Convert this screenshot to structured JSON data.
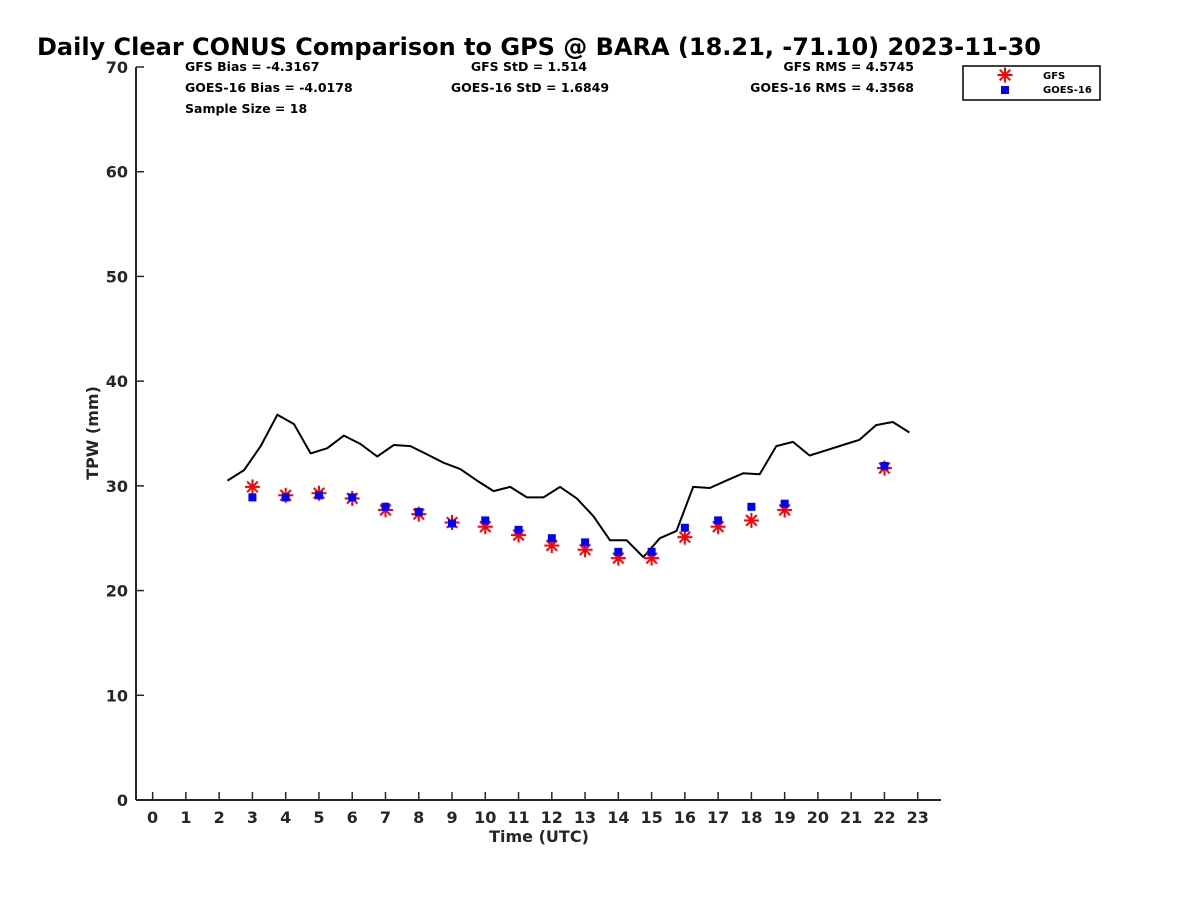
{
  "chart_data": {
    "type": "scatter",
    "title": "Daily Clear CONUS Comparison to GPS @ BARA (18.21, -71.10) 2023-11-30",
    "xlabel": "Time (UTC)",
    "ylabel": "TPW (mm)",
    "xlim": [
      -0.5,
      23.7
    ],
    "ylim": [
      0,
      70
    ],
    "x_ticks": [
      "0",
      "1",
      "2",
      "3",
      "4",
      "5",
      "6",
      "7",
      "8",
      "9",
      "10",
      "11",
      "12",
      "13",
      "14",
      "15",
      "16",
      "17",
      "18",
      "19",
      "20",
      "21",
      "22",
      "23"
    ],
    "y_ticks": [
      "0",
      "10",
      "20",
      "30",
      "40",
      "50",
      "60",
      "70"
    ],
    "grid": false,
    "legend_position": "top-right",
    "stats": {
      "gfs_bias": "GFS Bias = -4.3167",
      "goes_bias": "GOES-16 Bias = -4.0178",
      "sample_size": "Sample Size = 18",
      "gfs_std": "GFS StD = 1.514",
      "goes_std": "GOES-16 StD = 1.6849",
      "gfs_rms": "GFS RMS = 4.5745",
      "goes_rms": "GOES-16 RMS = 4.3568"
    },
    "series": [
      {
        "name": "GFS",
        "marker": "asterisk",
        "color": "#ff0000",
        "x": [
          3,
          4,
          5,
          6,
          7,
          8,
          9,
          10,
          11,
          12,
          13,
          14,
          15,
          16,
          17,
          18,
          19,
          22
        ],
        "y": [
          29.9,
          29.1,
          29.3,
          28.8,
          27.7,
          27.3,
          26.5,
          26.1,
          25.3,
          24.3,
          23.9,
          23.1,
          23.1,
          25.1,
          26.1,
          26.7,
          27.7,
          31.7
        ]
      },
      {
        "name": "GOES-16",
        "marker": "square",
        "color": "#0000ff",
        "x": [
          3,
          4,
          5,
          6,
          7,
          8,
          9,
          10,
          11,
          12,
          13,
          14,
          15,
          16,
          17,
          18,
          19,
          22
        ],
        "y": [
          28.9,
          28.9,
          29.1,
          28.9,
          28.0,
          27.5,
          26.4,
          26.7,
          25.8,
          25.0,
          24.6,
          23.7,
          23.7,
          26.0,
          26.7,
          28.0,
          28.3,
          31.9
        ]
      },
      {
        "marker": "line",
        "color": "#000000",
        "x": [
          2.25,
          2.75,
          3.25,
          3.75,
          4.25,
          4.75,
          5.25,
          5.75,
          6.25,
          6.75,
          7.25,
          7.75,
          8.25,
          8.75,
          9.25,
          9.75,
          10.25,
          10.75,
          11.25,
          11.75,
          12.25,
          12.75,
          13.25,
          13.75,
          14.25,
          14.75,
          15.25,
          15.75,
          16.25,
          16.75,
          17.25,
          17.75,
          18.25,
          18.75,
          19.25,
          19.75,
          20.25,
          20.75,
          21.25,
          21.75,
          22.25,
          22.75
        ],
        "y": [
          30.5,
          31.5,
          33.8,
          36.8,
          35.9,
          33.1,
          33.6,
          34.8,
          34.0,
          32.8,
          33.9,
          33.8,
          33.0,
          32.2,
          31.6,
          30.5,
          29.5,
          29.9,
          28.9,
          28.9,
          29.9,
          28.8,
          27.1,
          24.8,
          24.8,
          23.2,
          25.0,
          25.7,
          29.9,
          29.8,
          30.5,
          31.2,
          31.1,
          33.8,
          34.2,
          32.9,
          33.4,
          33.9,
          34.4,
          35.8,
          36.1,
          35.1
        ]
      }
    ]
  }
}
